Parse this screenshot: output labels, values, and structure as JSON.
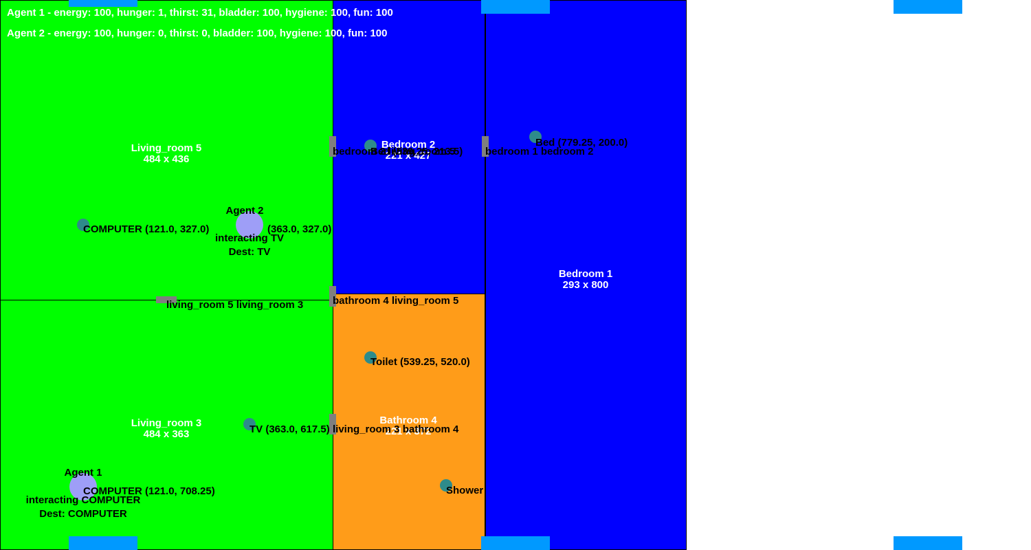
{
  "colors": {
    "living": "#00ff00",
    "bedroom": "#0000ff",
    "bathroom": "#ff9c19",
    "window": "#0099ff",
    "door": "#7f7f7f",
    "object": "#2e8b8b",
    "agent": "#9e9ef7"
  },
  "status": [
    "Agent 1 - energy: 100, hunger: 1, thirst: 31, bladder: 100, hygiene: 100, fun: 100",
    "Agent 2 - energy: 100, hunger: 0, thirst: 0, bladder: 100, hygiene: 100, fun: 100"
  ],
  "rooms": {
    "living5": {
      "name": "Living_room 5",
      "size": "484 x 436"
    },
    "bedroom2": {
      "name": "Bedroom 2",
      "size": "221 x 427"
    },
    "bedroom1": {
      "name": "Bedroom 1",
      "size": "293 x 800"
    },
    "living3": {
      "name": "Living_room 3",
      "size": "484 x 363"
    },
    "bathroom4": {
      "name": "Bathroom 4",
      "size": "221 x 372"
    }
  },
  "doors": {
    "bedroom2_living5": "bedroom 2 living_room 5",
    "bedroom1_bedroom2": "bedroom 1 bedroom 2",
    "living5_living3": "living_room 5 living_room 3",
    "bathroom4_living5": "bathroom 4 living_room 5",
    "living3_bathroom4": "living_room 3 bathroom 4"
  },
  "objects": {
    "computer5": "COMPUTER (121.0, 327.0)",
    "tv5": "(363.0, 327.0)",
    "bed_b2": "Bed (539.25, 213.5)",
    "bed_b1": "Bed (779.25, 200.0)",
    "toilet": "Toilet (539.25, 520.0)",
    "tv3": "TV (363.0, 617.5)",
    "computer3": "COMPUTER (121.0, 708.25)",
    "shower": "Shower"
  },
  "agents": {
    "agent2": {
      "name": "Agent 2",
      "action": "interacting TV",
      "dest": "Dest: TV"
    },
    "agent1": {
      "name": "Agent 1",
      "action": "interacting COMPUTER",
      "dest": "Dest: COMPUTER"
    }
  }
}
